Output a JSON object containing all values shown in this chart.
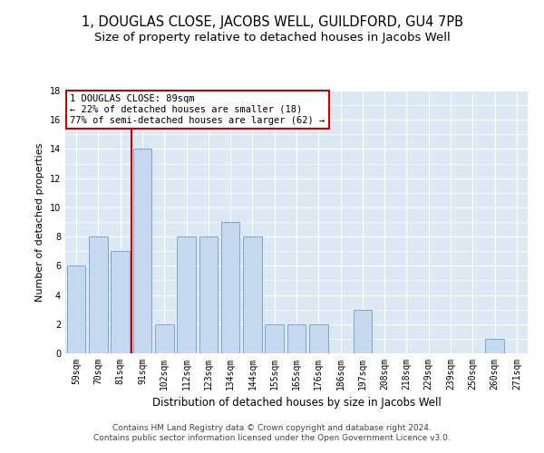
{
  "title": "1, DOUGLAS CLOSE, JACOBS WELL, GUILDFORD, GU4 7PB",
  "subtitle": "Size of property relative to detached houses in Jacobs Well",
  "xlabel": "Distribution of detached houses by size in Jacobs Well",
  "ylabel": "Number of detached properties",
  "categories": [
    "59sqm",
    "70sqm",
    "81sqm",
    "91sqm",
    "102sqm",
    "112sqm",
    "123sqm",
    "134sqm",
    "144sqm",
    "155sqm",
    "165sqm",
    "176sqm",
    "186sqm",
    "197sqm",
    "208sqm",
    "218sqm",
    "229sqm",
    "239sqm",
    "250sqm",
    "260sqm",
    "271sqm"
  ],
  "values": [
    6,
    8,
    7,
    14,
    2,
    8,
    8,
    9,
    8,
    2,
    2,
    2,
    0,
    3,
    0,
    0,
    0,
    0,
    0,
    1,
    0
  ],
  "bar_color": "#c5d8ed",
  "bar_edge_color": "#7aa8cc",
  "background_color": "#dce9f5",
  "vline_bin_index": 3,
  "vline_color": "#cc0000",
  "annotation_line1": "1 DOUGLAS CLOSE: 89sqm",
  "annotation_line2": "← 22% of detached houses are smaller (18)",
  "annotation_line3": "77% of semi-detached houses are larger (62) →",
  "annotation_box_color": "white",
  "annotation_box_edge": "#cc0000",
  "ylim": [
    0,
    18
  ],
  "yticks": [
    0,
    2,
    4,
    6,
    8,
    10,
    12,
    14,
    16,
    18
  ],
  "footer_line1": "Contains HM Land Registry data © Crown copyright and database right 2024.",
  "footer_line2": "Contains public sector information licensed under the Open Government Licence v3.0.",
  "title_fontsize": 10.5,
  "subtitle_fontsize": 9.5,
  "xlabel_fontsize": 8.5,
  "ylabel_fontsize": 8,
  "tick_fontsize": 7,
  "annotation_fontsize": 7.5,
  "footer_fontsize": 6.5
}
